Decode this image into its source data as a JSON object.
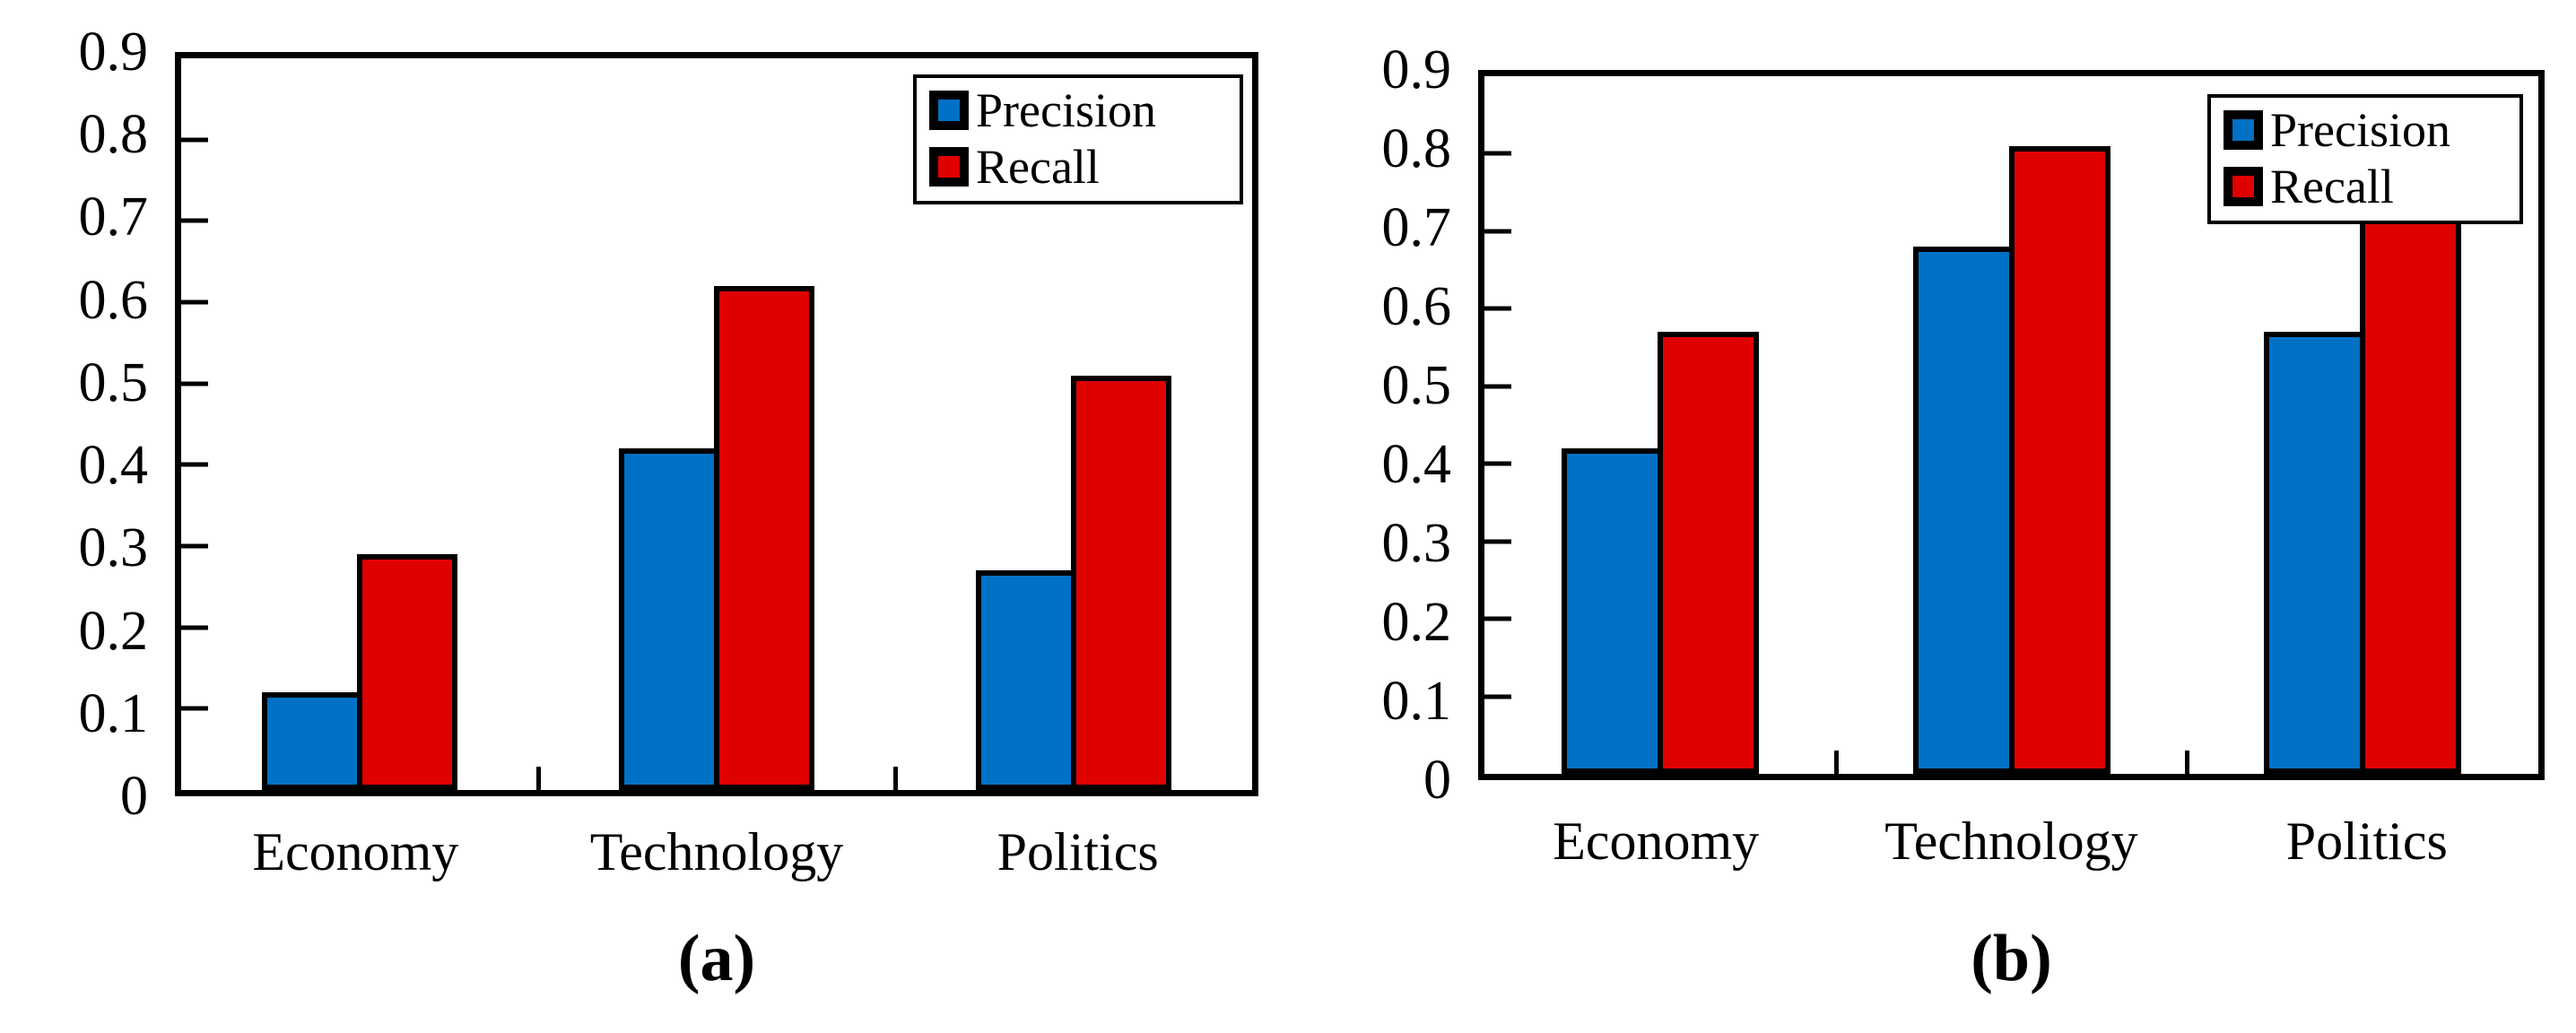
{
  "figure": {
    "description": "Two grouped bar charts comparing Precision and Recall across news categories",
    "colors": {
      "precision": "#0071C5",
      "recall": "#DF0000",
      "axis": "#000000",
      "background": "#FFFFFF"
    },
    "panels": [
      {
        "caption": "(a)"
      },
      {
        "caption": "(b)"
      }
    ]
  },
  "chart_data": [
    {
      "type": "bar",
      "title": "",
      "caption": "(a)",
      "categories": [
        "Economy",
        "Technology",
        "Politics"
      ],
      "series": [
        {
          "name": "Precision",
          "color": "#0071C5",
          "values": [
            0.12,
            0.42,
            0.27
          ]
        },
        {
          "name": "Recall",
          "color": "#DF0000",
          "values": [
            0.29,
            0.62,
            0.51
          ]
        }
      ],
      "xlabel": "",
      "ylabel": "",
      "ylim": [
        0,
        0.9
      ],
      "ytick_step": 0.1,
      "ytick_labels": [
        "0",
        "0.1",
        "0.2",
        "0.3",
        "0.4",
        "0.5",
        "0.6",
        "0.7",
        "0.8",
        "0.9"
      ],
      "grid": false,
      "legend_position": "top-right",
      "legend_entries": [
        "Precision",
        "Recall"
      ]
    },
    {
      "type": "bar",
      "title": "",
      "caption": "(b)",
      "categories": [
        "Economy",
        "Technology",
        "Politics"
      ],
      "series": [
        {
          "name": "Precision",
          "color": "#0071C5",
          "values": [
            0.42,
            0.68,
            0.57
          ]
        },
        {
          "name": "Recall",
          "color": "#DF0000",
          "values": [
            0.57,
            0.81,
            0.72
          ]
        }
      ],
      "xlabel": "",
      "ylabel": "",
      "ylim": [
        0,
        0.9
      ],
      "ytick_step": 0.1,
      "ytick_labels": [
        "0",
        "0.1",
        "0.2",
        "0.3",
        "0.4",
        "0.5",
        "0.6",
        "0.7",
        "0.8",
        "0.9"
      ],
      "grid": false,
      "legend_position": "top-right",
      "legend_entries": [
        "Precision",
        "Recall"
      ]
    }
  ]
}
